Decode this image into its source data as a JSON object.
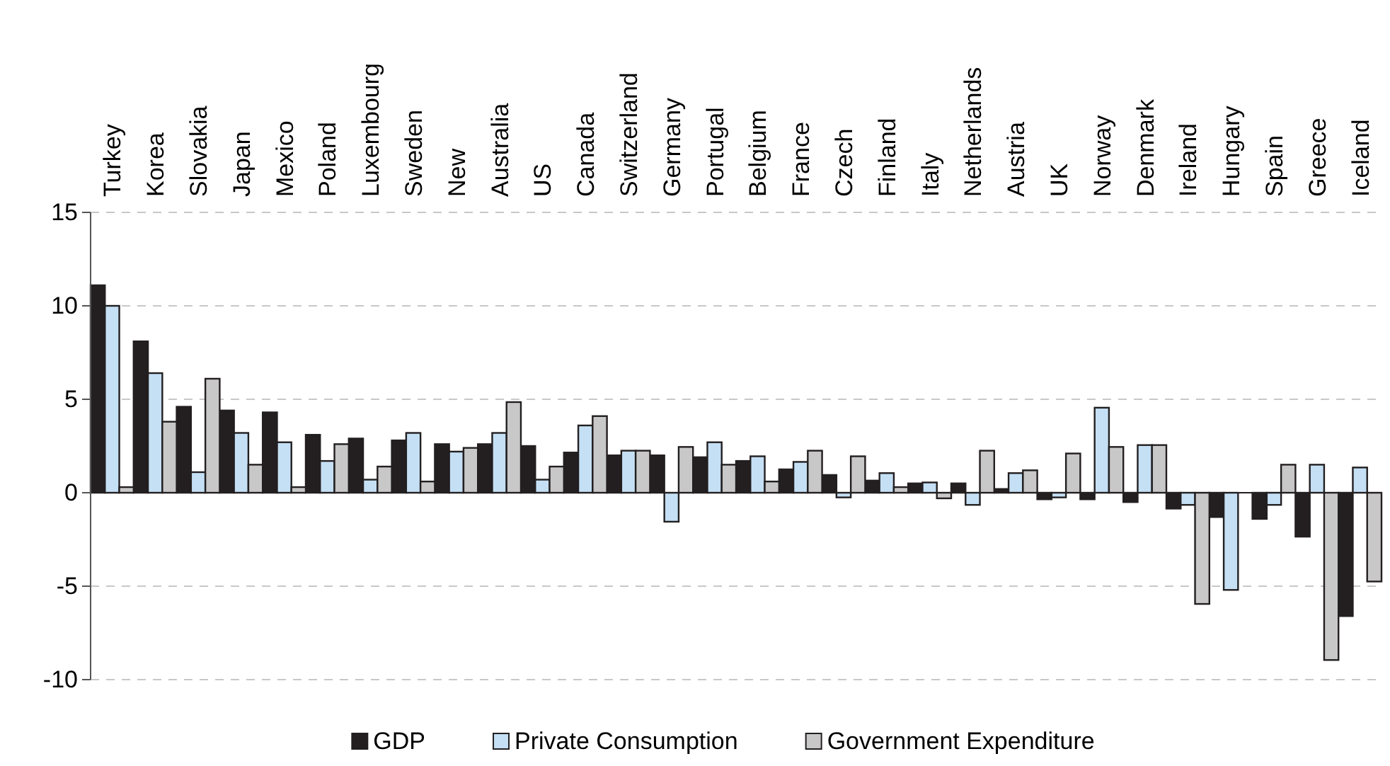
{
  "chart_data": {
    "type": "bar",
    "categories": [
      "Turkey",
      "Korea",
      "Slovakia",
      "Japan",
      "Mexico",
      "Poland",
      "Luxembourg",
      "Sweden",
      "New",
      "Australia",
      "US",
      "Canada",
      "Switzerland",
      "Germany",
      "Portugal",
      "Belgium",
      "France",
      "Czech",
      "Finland",
      "Italy",
      "Netherlands",
      "Austria",
      "UK",
      "Norway",
      "Denmark",
      "Ireland",
      "Hungary",
      "Spain",
      "Greece",
      "Iceland"
    ],
    "series": [
      {
        "name": "GDP",
        "color": "#231f20",
        "values": [
          11.1,
          8.1,
          4.6,
          4.4,
          4.3,
          3.1,
          2.9,
          2.8,
          2.6,
          2.6,
          2.5,
          2.15,
          2.0,
          2.0,
          1.9,
          1.7,
          1.25,
          0.95,
          0.65,
          0.5,
          0.5,
          0.2,
          -0.35,
          -0.35,
          -0.5,
          -0.85,
          -1.3,
          -1.4,
          -2.35,
          -6.6
        ]
      },
      {
        "name": "Private Consumption",
        "color": "#c5e0f5",
        "values": [
          10.0,
          6.4,
          1.1,
          3.2,
          2.7,
          1.7,
          0.7,
          3.2,
          2.2,
          3.2,
          0.7,
          3.6,
          2.25,
          -1.55,
          2.7,
          1.95,
          1.65,
          -0.25,
          1.05,
          0.55,
          -0.65,
          1.05,
          -0.25,
          4.55,
          2.55,
          -0.65,
          -5.2,
          -0.65,
          1.5,
          1.35
        ]
      },
      {
        "name": "Government Expenditure",
        "color": "#c8c8c8",
        "values": [
          0.3,
          3.8,
          6.1,
          1.5,
          0.3,
          2.6,
          1.4,
          0.6,
          2.4,
          4.85,
          1.4,
          4.1,
          2.25,
          2.45,
          1.5,
          0.6,
          2.25,
          1.95,
          0.3,
          -0.3,
          2.25,
          1.2,
          2.1,
          2.45,
          2.55,
          -5.95,
          0,
          1.5,
          -8.95,
          -4.75
        ]
      }
    ],
    "ylim": [
      -10,
      15
    ],
    "yticks": [
      -10,
      -5,
      0,
      5,
      10,
      15
    ],
    "grid": "y",
    "legend": "bottom"
  }
}
